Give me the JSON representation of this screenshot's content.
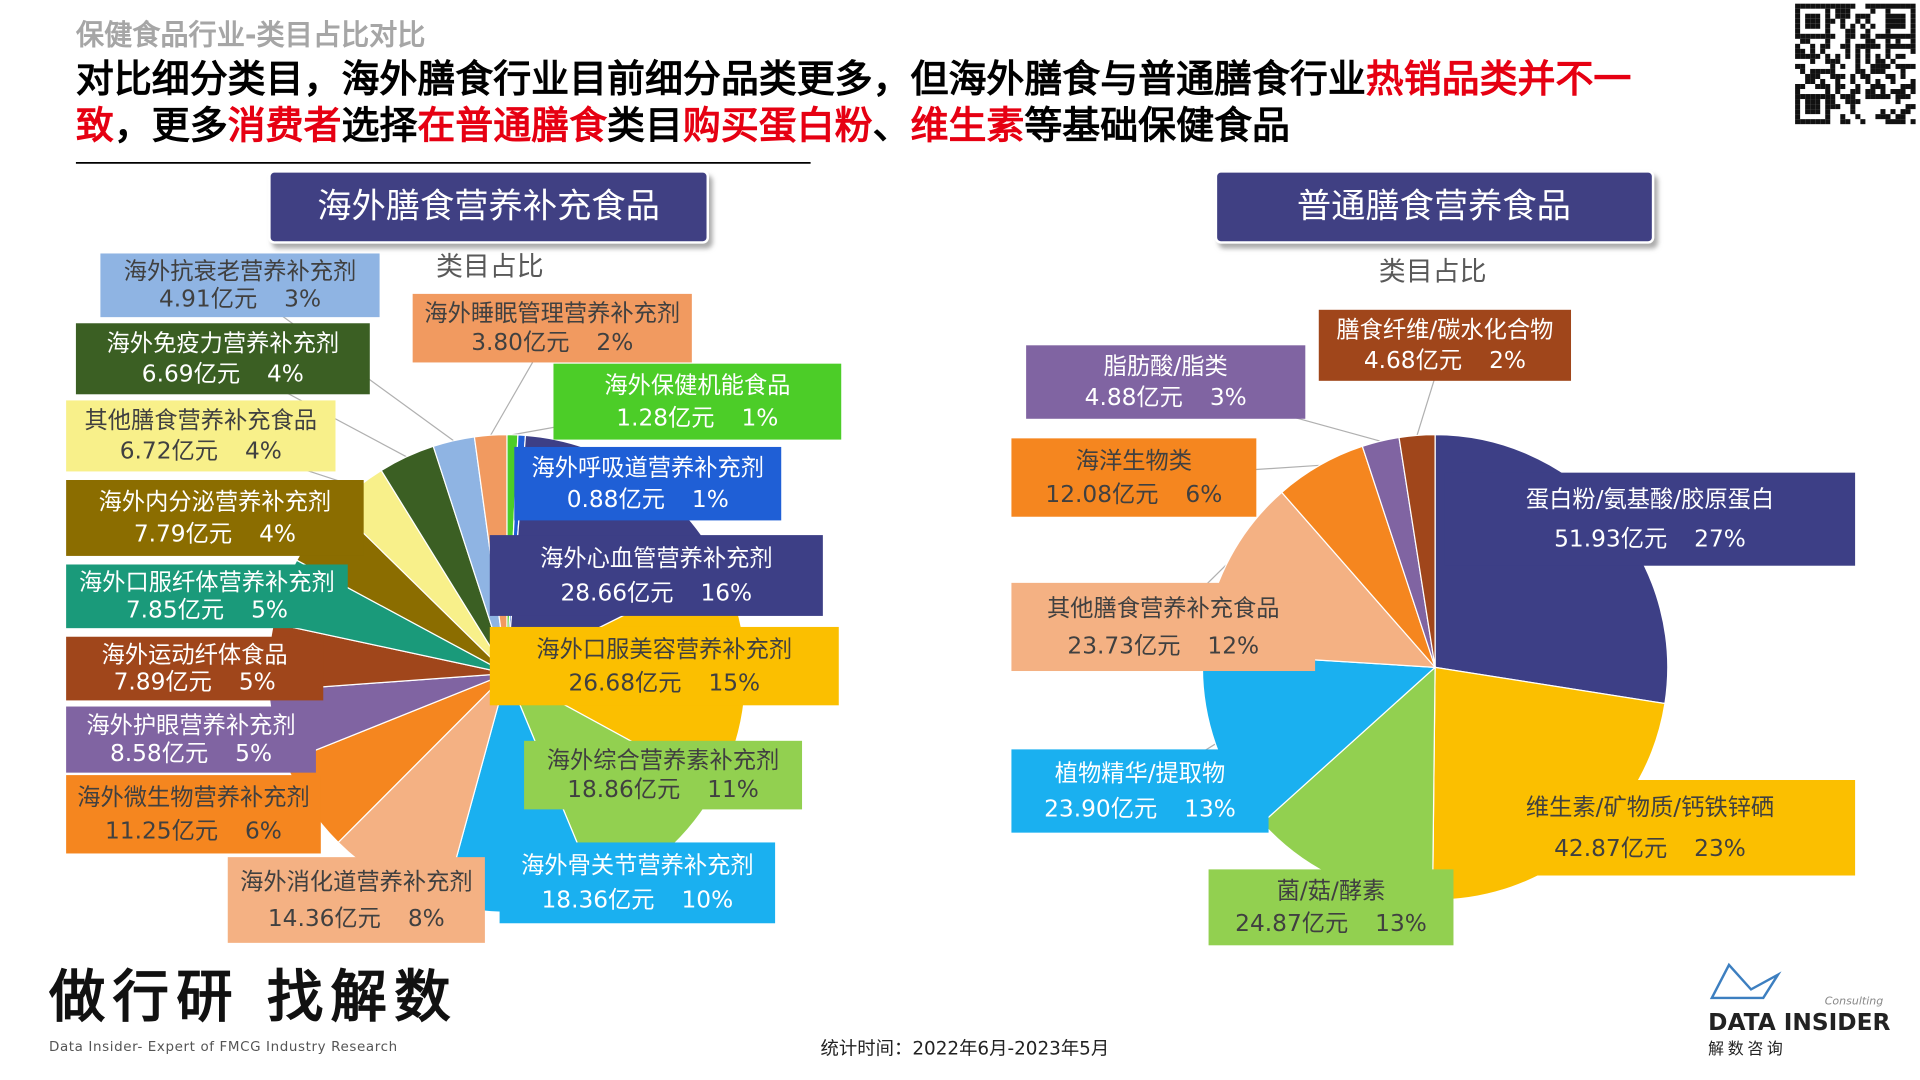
{
  "page": {
    "section": "保健食品行业-类目占比对比",
    "headline": [
      [
        {
          "text": "对比细分类目，海外膳食行业目前细分品类更多，但海外膳食与普通膳食行业",
          "color": "#000000"
        },
        {
          "text": "热销品类并不一",
          "color": "#e60012"
        }
      ],
      [
        {
          "text": "致",
          "color": "#e60012"
        },
        {
          "text": "，更多",
          "color": "#000000"
        },
        {
          "text": "消费者",
          "color": "#e60012"
        },
        {
          "text": "选择",
          "color": "#000000"
        },
        {
          "text": "在普通膳食",
          "color": "#e60012"
        },
        {
          "text": "类目",
          "color": "#000000"
        },
        {
          "text": "购买蛋白粉",
          "color": "#e60012"
        },
        {
          "text": "、",
          "color": "#000000"
        },
        {
          "text": "维生素",
          "color": "#e60012"
        },
        {
          "text": "等基础保健食品",
          "color": "#000000"
        }
      ]
    ],
    "slogan": "做行研 找解数",
    "slogan_sub": "Data Insider- Expert of FMCG Industry Research",
    "period": "统计时间：2022年6月-2023年5月",
    "brand": "DATA INSIDER",
    "brand_cn": "解数咨询",
    "brand_tag": "Consulting"
  },
  "chart_data": [
    {
      "type": "pie",
      "title": "海外膳食营养补充食品",
      "subtitle": "类目占比",
      "categories": [
        "海外保健机能食品",
        "海外呼吸道营养补充剂",
        "海外心血管营养补充剂",
        "海外口服美容营养补充剂",
        "海外综合营养素补充剂",
        "海外骨关节营养补充剂",
        "海外消化道营养补充剂",
        "海外微生物营养补充剂",
        "海外护眼营养补充剂",
        "海外运动纤体食品",
        "海外口服纤体营养补充剂",
        "海外内分泌营养补充剂",
        "其他膳食营养补充食品",
        "海外免疫力营养补充剂",
        "海外抗衰老营养补充剂",
        "海外睡眠管理营养补充剂"
      ],
      "values": [
        1.28,
        0.88,
        28.66,
        26.68,
        18.86,
        18.36,
        14.36,
        11.25,
        8.58,
        7.89,
        7.85,
        7.79,
        6.72,
        6.69,
        4.91,
        3.8
      ],
      "value_labels": [
        "1.28亿元",
        "0.88亿元",
        "28.66亿元",
        "26.68亿元",
        "18.86亿元",
        "18.36亿元",
        "14.36亿元",
        "11.25亿元",
        "8.58亿元",
        "7.89亿元",
        "7.85亿元",
        "7.79亿元",
        "6.72亿元",
        "6.69亿元",
        "4.91亿元",
        "3.80亿元"
      ],
      "shares": [
        1,
        1,
        16,
        15,
        11,
        10,
        8,
        6,
        5,
        5,
        5,
        4,
        4,
        4,
        3,
        2
      ],
      "share_labels": [
        "1%",
        "1%",
        "16%",
        "15%",
        "11%",
        "10%",
        "8%",
        "6%",
        "5%",
        "5%",
        "5%",
        "4%",
        "4%",
        "4%",
        "3%",
        "2%"
      ],
      "colors": [
        "#4ccd28",
        "#1f5fd6",
        "#3d3f86",
        "#fbbf00",
        "#92d050",
        "#1ab0f0",
        "#f4b183",
        "#f5861f",
        "#8064a2",
        "#a0461b",
        "#1a9a7a",
        "#8b6d00",
        "#f8f08a",
        "#3b5f23",
        "#8fb4e3",
        "#f19a60"
      ]
    },
    {
      "type": "pie",
      "title": "普通膳食营养食品",
      "subtitle": "类目占比",
      "categories": [
        "蛋白粉/氨基酸/胶原蛋白",
        "维生素/矿物质/钙铁锌硒",
        "菌/菇/酵素",
        "植物精华/提取物",
        "其他膳食营养补充食品",
        "海洋生物类",
        "脂肪酸/脂类",
        "膳食纤维/碳水化合物"
      ],
      "values": [
        51.93,
        42.87,
        24.87,
        23.9,
        23.73,
        12.08,
        4.88,
        4.68
      ],
      "value_labels": [
        "51.93亿元",
        "42.87亿元",
        "24.87亿元",
        "23.90亿元",
        "23.73亿元",
        "12.08亿元",
        "4.88亿元",
        "4.68亿元"
      ],
      "shares": [
        27,
        23,
        13,
        13,
        12,
        6,
        3,
        2
      ],
      "share_labels": [
        "27%",
        "23%",
        "13%",
        "13%",
        "12%",
        "6%",
        "3%",
        "2%"
      ],
      "colors": [
        "#3d3f86",
        "#fbbf00",
        "#92d050",
        "#1ab0f0",
        "#f4b183",
        "#f5861f",
        "#8064a2",
        "#a0461b"
      ]
    }
  ]
}
